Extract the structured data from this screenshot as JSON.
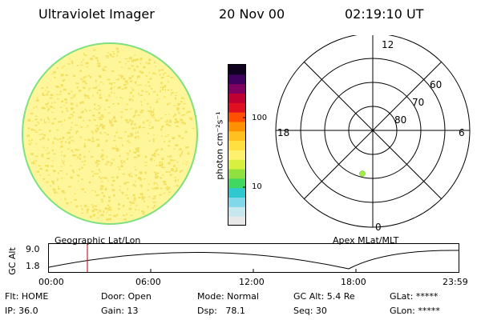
{
  "header": {
    "title": "Ultraviolet Imager",
    "date": "20 Nov 00",
    "time": "02:19:10 UT"
  },
  "colorbar": {
    "label": "photon cm⁻²s⁻¹",
    "tick_100": "100",
    "tick_10": "10",
    "colors_bottom_to_top": [
      "#e8e8e8",
      "#c8e8f0",
      "#80d8e8",
      "#30c8d0",
      "#40d860",
      "#90e040",
      "#d8f040",
      "#fff070",
      "#ffe040",
      "#ffc020",
      "#ff9000",
      "#ff5000",
      "#e01020",
      "#c00030",
      "#800060",
      "#400060",
      "#100020"
    ]
  },
  "globe": {
    "fill_color": "#fff59a",
    "speckle_color": "#f2e060",
    "rim_color": "#7ee07e",
    "caption": "Geographic Lat/Lon"
  },
  "polar": {
    "caption": "Apex MLat/MLT",
    "mlt_12": "12",
    "mlt_18": "18",
    "mlt_6": "6",
    "mlt_0": "0",
    "lat_60": "60",
    "lat_70": "70",
    "lat_80": "80",
    "spot_color": "#a0f040"
  },
  "timeline": {
    "axis_label": "GC Alt",
    "y_top": "9.0",
    "y_bottom": "1.8",
    "ticks": [
      "00:00",
      "06:00",
      "12:00",
      "18:00",
      "23:59"
    ],
    "cursor_color": "#c02020"
  },
  "status": {
    "flt": "Flt: HOME",
    "ip": "IP: 36.0",
    "door": "Door: Open",
    "gain": "Gain: 13",
    "mode": "Mode: Normal",
    "dsp": "Dsp:   78.1",
    "gc_alt": "GC Alt: 5.4 Re",
    "seq": "Seq: 30",
    "glat": "GLat: *****",
    "glon": "GLon: *****"
  }
}
